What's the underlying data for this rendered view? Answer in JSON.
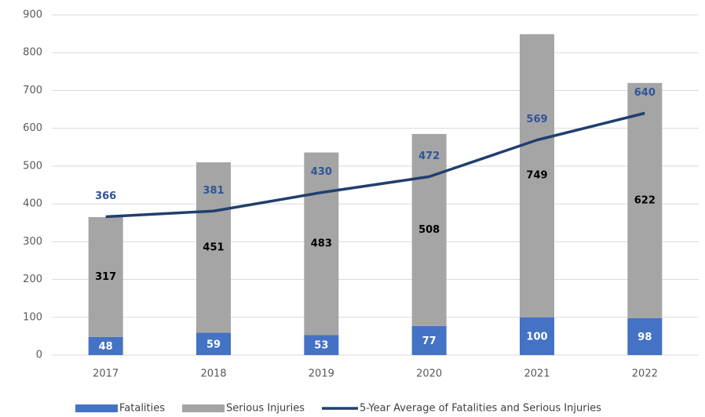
{
  "chart_data": {
    "type": "bar",
    "categories": [
      "2017",
      "2018",
      "2019",
      "2020",
      "2021",
      "2022"
    ],
    "series": [
      {
        "name": "Fatalities",
        "color": "#4472c4",
        "type": "bar",
        "values": [
          48,
          59,
          53,
          77,
          100,
          98
        ]
      },
      {
        "name": "Serious Injuries",
        "color": "#a5a5a5",
        "type": "bar",
        "values": [
          317,
          451,
          483,
          508,
          749,
          622
        ]
      },
      {
        "name": "5-Year Average of Fatalities and Serious Injuries",
        "color": "#1f3f6e",
        "type": "line",
        "values": [
          366,
          381,
          430,
          472,
          569,
          640
        ]
      }
    ],
    "stacked": true,
    "ylim": [
      0,
      900
    ],
    "yticks": [
      0,
      100,
      200,
      300,
      400,
      500,
      600,
      700,
      800,
      900
    ],
    "grid": true,
    "legend": "bottom",
    "data_labels": true
  }
}
